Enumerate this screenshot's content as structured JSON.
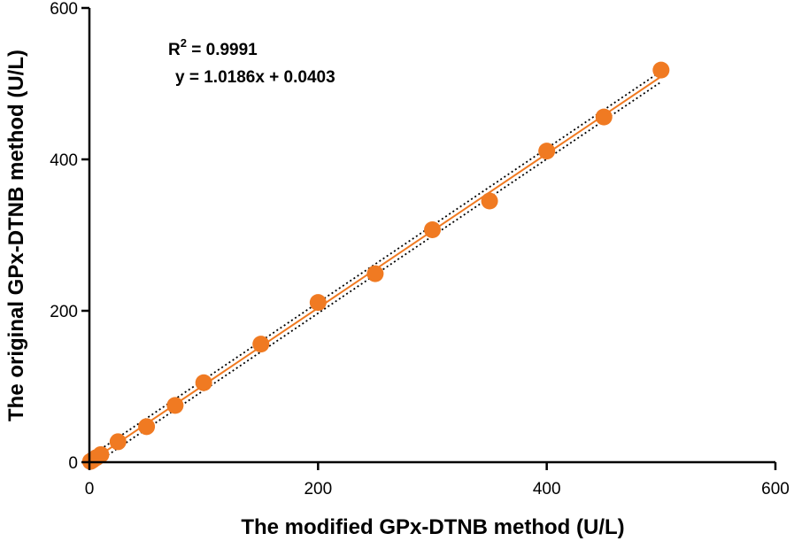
{
  "chart_data": {
    "type": "scatter",
    "title": "",
    "xlabel": "The modified GPx-DTNB method (U/L)",
    "ylabel": "The original GPx-DTNB method (U/L)",
    "xlim": [
      0,
      600
    ],
    "ylim": [
      0,
      600
    ],
    "xticks": [
      0,
      200,
      400,
      600
    ],
    "yticks": [
      0,
      200,
      400,
      600
    ],
    "grid": false,
    "color": "#f07a22",
    "series": [
      {
        "x": [
          1,
          3,
          6,
          10,
          25,
          50,
          75,
          100,
          150,
          200,
          250,
          300,
          350,
          400,
          450,
          500
        ],
        "y": [
          1,
          3,
          6,
          10,
          27,
          47,
          75,
          105,
          156,
          211,
          249,
          307,
          345,
          411,
          456,
          518
        ]
      }
    ],
    "fit": {
      "slope": 1.0186,
      "intercept": 0.0403,
      "x_range": [
        0,
        500
      ]
    },
    "annotations": {
      "r2_prefix": "R",
      "r2_sup": "2",
      "r2_value": " = 0.9991",
      "equation": "y = 1.0186x + 0.0403"
    }
  }
}
